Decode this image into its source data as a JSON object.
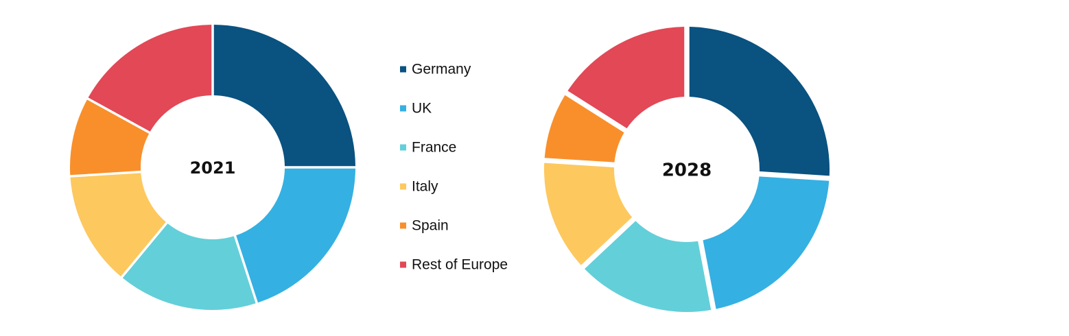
{
  "chart_data": [
    {
      "type": "pie",
      "title": "",
      "center_label": "2021",
      "categories": [
        "Germany",
        "UK",
        "France",
        "Italy",
        "Spain",
        "Rest of Europe"
      ],
      "values": [
        25,
        20,
        16,
        13,
        9,
        17
      ],
      "unit": "%",
      "colors": [
        "#0a5280",
        "#35b0e2",
        "#63cfd9",
        "#fdc85e",
        "#f98f2b",
        "#e24856"
      ],
      "legend_position": "right"
    },
    {
      "type": "pie",
      "title": "",
      "center_label": "2028",
      "categories": [
        "Germany",
        "UK",
        "France",
        "Italy",
        "Spain",
        "Rest of Europe"
      ],
      "values": [
        26,
        21,
        16,
        13,
        8,
        16
      ],
      "unit": "%",
      "colors": [
        "#0a5280",
        "#35b0e2",
        "#63cfd9",
        "#fdc85e",
        "#f98f2b",
        "#e24856"
      ],
      "legend_position": "left"
    }
  ],
  "legend": {
    "items": [
      {
        "label": "Germany",
        "color": "#0a5280"
      },
      {
        "label": "UK",
        "color": "#35b0e2"
      },
      {
        "label": "France",
        "color": "#63cfd9"
      },
      {
        "label": "Italy",
        "color": "#fdc85e"
      },
      {
        "label": "Spain",
        "color": "#f98f2b"
      },
      {
        "label": "Rest of Europe",
        "color": "#e24856"
      }
    ]
  }
}
